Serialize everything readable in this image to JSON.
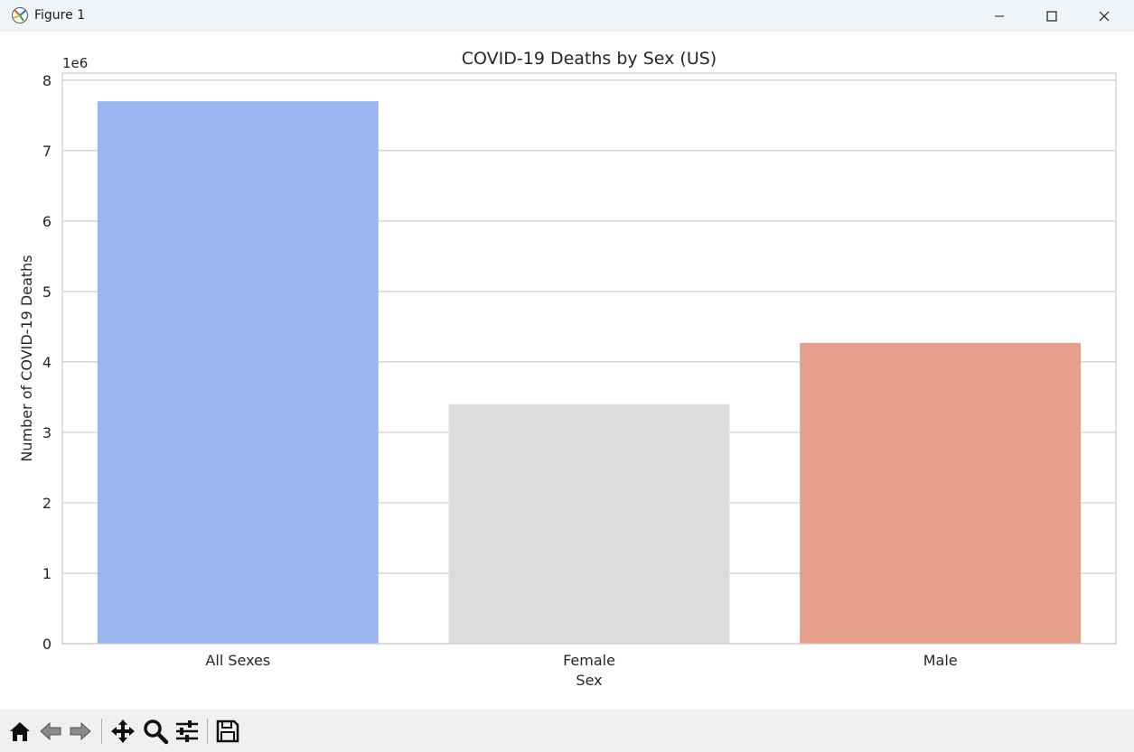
{
  "window": {
    "title": "Figure 1"
  },
  "toolbar": {
    "icons": [
      "home-icon",
      "back-arrow-icon",
      "forward-arrow-icon",
      "pan-icon",
      "zoom-icon",
      "configure-subplots-icon",
      "save-icon"
    ]
  },
  "chart_data": {
    "type": "bar",
    "title": "COVID-19 Deaths by Sex (US)",
    "xlabel": "Sex",
    "ylabel": "Number of COVID-19 Deaths",
    "y_offset_label": "1e6",
    "categories": [
      "All Sexes",
      "Female",
      "Male"
    ],
    "values": [
      7700000,
      3400000,
      4270000
    ],
    "colors": [
      "#9ab5f0",
      "#dcdcdc",
      "#e4a08a"
    ],
    "ylim": [
      0,
      8100000
    ],
    "yticks": [
      0,
      1000000,
      2000000,
      3000000,
      4000000,
      5000000,
      6000000,
      7000000,
      8000000
    ],
    "ytick_labels": [
      "0",
      "1",
      "2",
      "3",
      "4",
      "5",
      "6",
      "7",
      "8"
    ],
    "grid": true,
    "grid_axis": "y"
  }
}
